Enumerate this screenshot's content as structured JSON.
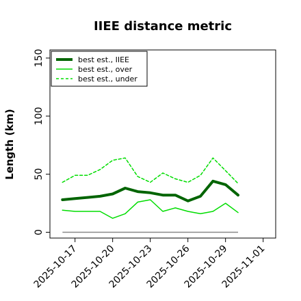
{
  "chart_data": {
    "type": "line",
    "title": "IIEE distance metric",
    "xlabel": "",
    "ylabel": "Length (km)",
    "xlim": [
      "2025-10-15",
      "2025-11-02"
    ],
    "ylim": [
      -5,
      157
    ],
    "y_ticks": [
      0,
      50,
      100,
      150
    ],
    "x_ticks": [
      "2025-10-17",
      "2025-10-20",
      "2025-10-23",
      "2025-10-26",
      "2025-10-29",
      "2025-11-01"
    ],
    "grid": false,
    "legend_position": "top-left",
    "x": [
      "2025-10-16",
      "2025-10-17",
      "2025-10-18",
      "2025-10-19",
      "2025-10-20",
      "2025-10-21",
      "2025-10-22",
      "2025-10-23",
      "2025-10-24",
      "2025-10-25",
      "2025-10-26",
      "2025-10-27",
      "2025-10-28",
      "2025-10-29",
      "2025-10-30"
    ],
    "series": [
      {
        "name": "best est., IIEE",
        "color": "#006400",
        "style": "solid-thick",
        "values": [
          28,
          29,
          30,
          31,
          33,
          38,
          35,
          34,
          32,
          32,
          27,
          31,
          44,
          41,
          32
        ]
      },
      {
        "name": "best est., over",
        "color": "#00dd00",
        "style": "solid",
        "values": [
          19,
          18,
          18,
          18,
          12,
          16,
          26,
          28,
          18,
          21,
          18,
          16,
          18,
          25,
          17
        ]
      },
      {
        "name": "best est., under",
        "color": "#00dd00",
        "style": "dashed",
        "values": [
          43,
          49,
          49,
          54,
          62,
          64,
          48,
          43,
          51,
          46,
          43,
          49,
          64,
          53,
          42
        ]
      }
    ],
    "baseline": {
      "color": "#888888",
      "value": 0,
      "x_range": [
        "2025-10-16",
        "2025-10-30"
      ]
    }
  }
}
